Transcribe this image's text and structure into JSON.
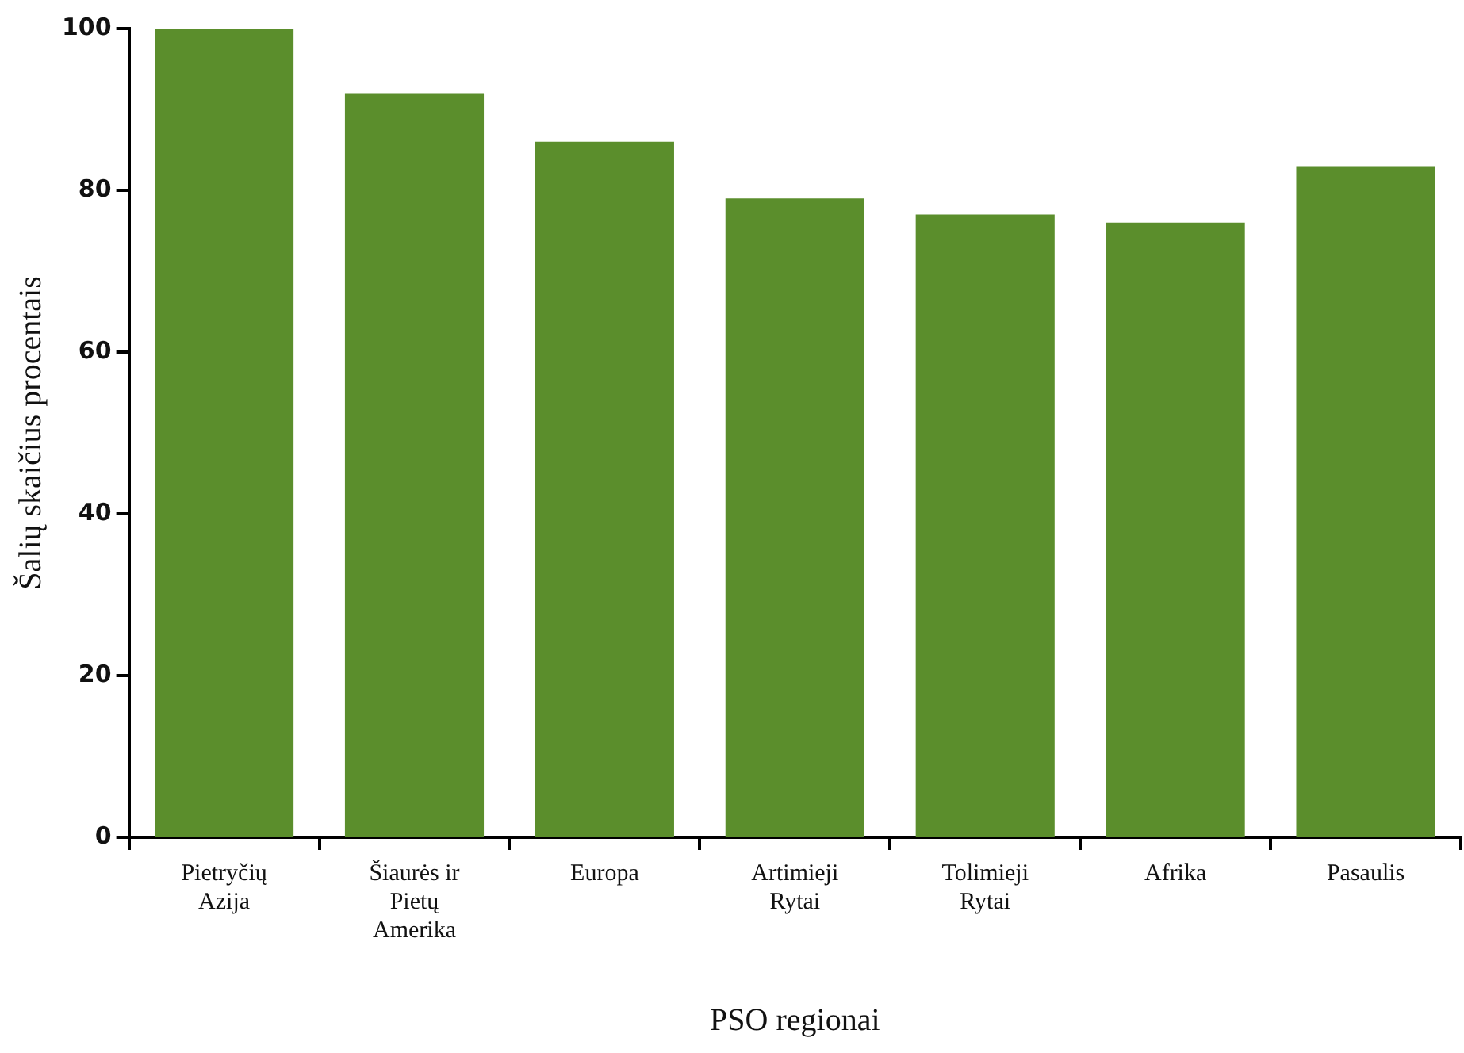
{
  "chart_data": {
    "type": "bar",
    "xlabel": "PSO regionai",
    "ylabel": "Šalių skaičius procentais",
    "categories": [
      "Pietryčių Azija",
      "Šiaurės ir Pietų Amerika",
      "Europa",
      "Artimieji Rytai",
      "Tolimieji Rytai",
      "Afrika",
      "Pasaulis"
    ],
    "values": [
      100,
      92,
      86,
      79,
      77,
      76,
      83
    ],
    "color": "#5b8e2c",
    "ylim": [
      0,
      100
    ],
    "yticks": [
      0,
      20,
      40,
      60,
      80,
      100
    ],
    "grid": false,
    "legend": false
  }
}
